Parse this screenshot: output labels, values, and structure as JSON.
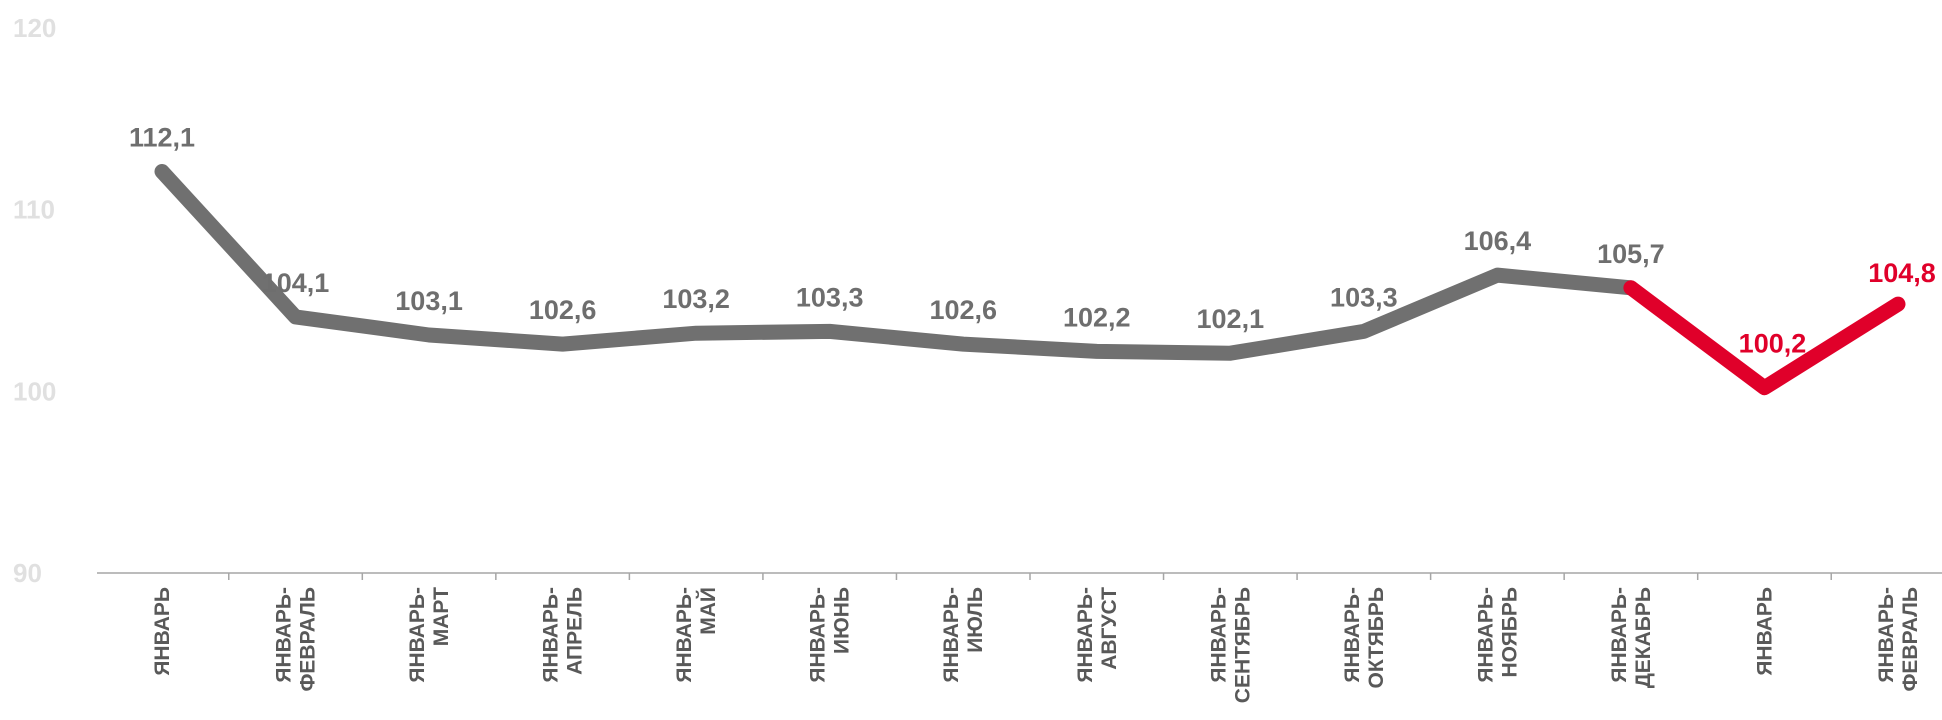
{
  "chart_data": {
    "type": "line",
    "title": "",
    "xlabel": "",
    "ylabel": "",
    "ylim": [
      90,
      120
    ],
    "yticks": [
      90,
      100,
      110,
      120
    ],
    "categories": [
      [
        "ЯНВАРЬ"
      ],
      [
        "ЯНВАРЬ-",
        "ФЕВРАЛЬ"
      ],
      [
        "ЯНВАРЬ-",
        "МАРТ"
      ],
      [
        "ЯНВАРЬ-",
        "АПРЕЛЬ"
      ],
      [
        "ЯНВАРЬ-",
        "МАЙ"
      ],
      [
        "ЯНВАРЬ-",
        "ИЮНЬ"
      ],
      [
        "ЯНВАРЬ-",
        "ИЮЛЬ"
      ],
      [
        "ЯНВАРЬ-",
        "АВГУСТ"
      ],
      [
        "ЯНВАРЬ-",
        "СЕНТЯБРЬ"
      ],
      [
        "ЯНВАРЬ-",
        "ОКТЯБРЬ"
      ],
      [
        "ЯНВАРЬ-",
        "НОЯБРЬ"
      ],
      [
        "ЯНВАРЬ-",
        "ДЕКАБРЬ"
      ],
      [
        "ЯНВАРЬ"
      ],
      [
        "ЯНВАРЬ-",
        "ФЕВРАЛЬ"
      ]
    ],
    "values": [
      112.1,
      104.1,
      103.1,
      102.6,
      103.2,
      103.3,
      102.6,
      102.2,
      102.1,
      103.3,
      106.4,
      105.7,
      100.2,
      104.8
    ],
    "data_labels": [
      "112,1",
      "104,1",
      "103,1",
      "102,6",
      "103,2",
      "103,3",
      "102,6",
      "102,2",
      "102,1",
      "103,3",
      "106,4",
      "105,7",
      "100,2",
      "104,8"
    ],
    "segments": [
      {
        "from": 0,
        "to": 11,
        "color": "#707070"
      },
      {
        "from": 11,
        "to": 13,
        "color": "#e0002a"
      }
    ],
    "label_colors": {
      "gray": "#6e6e6e",
      "red": "#e0002a"
    },
    "highlight_from_index": 12,
    "grid": false,
    "legend": "none"
  }
}
